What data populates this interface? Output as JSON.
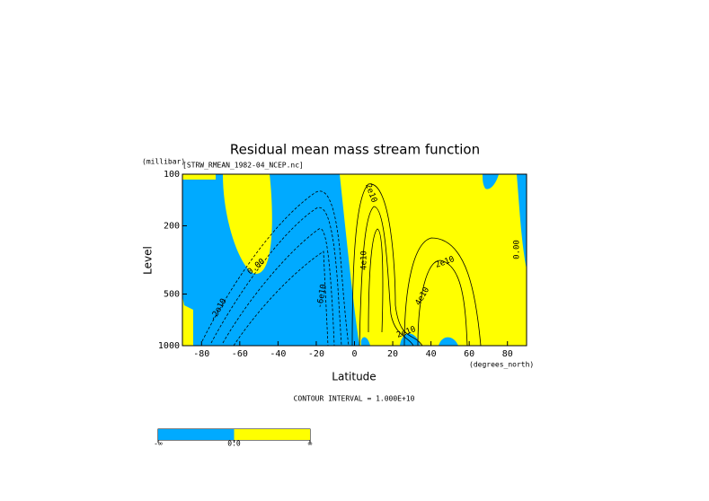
{
  "chart_data": {
    "type": "contour",
    "title": "Residual mean mass stream function",
    "subtitle": "[STRW_RMEAN_1982-04_NCEP.nc]",
    "x_label": "Latitude",
    "x_units": "(degrees_north)",
    "y_label": "Level",
    "y_units": "(millibar)",
    "xlim": [
      -90,
      90
    ],
    "xticks": [
      -80,
      -60,
      -40,
      -20,
      0,
      20,
      40,
      60,
      80
    ],
    "ylim": [
      100,
      1000
    ],
    "yticks": [
      100,
      200,
      500,
      1000
    ],
    "y_log": true,
    "y_reversed": true,
    "footer": "CONTOUR INTERVAL = 1.000E+10",
    "contour_labels": [
      "2e10",
      "0.00",
      "-2e10",
      "-6e10",
      "4e10",
      "2e10",
      "4e10",
      "0.00",
      "2e10"
    ],
    "colorbar": {
      "colors": [
        "#00aaff",
        "#ffff00"
      ],
      "labels": [
        "-∞",
        "0.0",
        "∞"
      ]
    }
  }
}
